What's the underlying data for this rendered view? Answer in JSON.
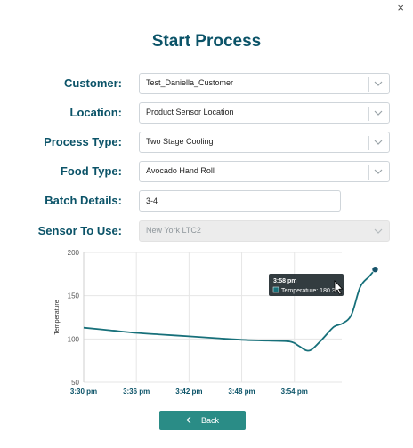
{
  "dialog": {
    "title": "Start Process",
    "close_glyph": "×"
  },
  "form": {
    "customer": {
      "label": "Customer:",
      "value": "Test_Daniella_Customer"
    },
    "location": {
      "label": "Location:",
      "value": "Product Sensor Location"
    },
    "process_type": {
      "label": "Process Type:",
      "value": "Two Stage Cooling"
    },
    "food_type": {
      "label": "Food Type:",
      "value": "Avocado Hand Roll"
    },
    "batch_details": {
      "label": "Batch Details:",
      "value": "3-4"
    },
    "sensor": {
      "label": "Sensor To Use:",
      "value": "New York LTC2",
      "disabled": true
    }
  },
  "chart_data": {
    "type": "line",
    "ylabel": "Temperature",
    "ylim": [
      50,
      200
    ],
    "y_ticks": [
      "200",
      "150",
      "100",
      "50"
    ],
    "x_ticks": [
      "3:30 pm",
      "3:36 pm",
      "3:42 pm",
      "3:48 pm",
      "3:54 pm"
    ],
    "color": "#17707a",
    "series": [
      {
        "name": "Temperature",
        "x_minutes": [
          0,
          3,
          6,
          9,
          12,
          15,
          18,
          21,
          23.5,
          24.5,
          25.3,
          26,
          27.2,
          28.5,
          29.5,
          30.5,
          31.5,
          32.5,
          33.2
        ],
        "values": [
          113,
          110,
          107,
          105,
          103,
          101,
          99,
          98,
          97,
          92,
          87,
          88,
          100,
          114,
          118,
          128,
          160,
          172,
          180.3
        ]
      }
    ],
    "tooltip": {
      "time": "3:58 pm",
      "label": "Temperature: 180.3"
    }
  },
  "actions": {
    "back_label": "Back"
  }
}
